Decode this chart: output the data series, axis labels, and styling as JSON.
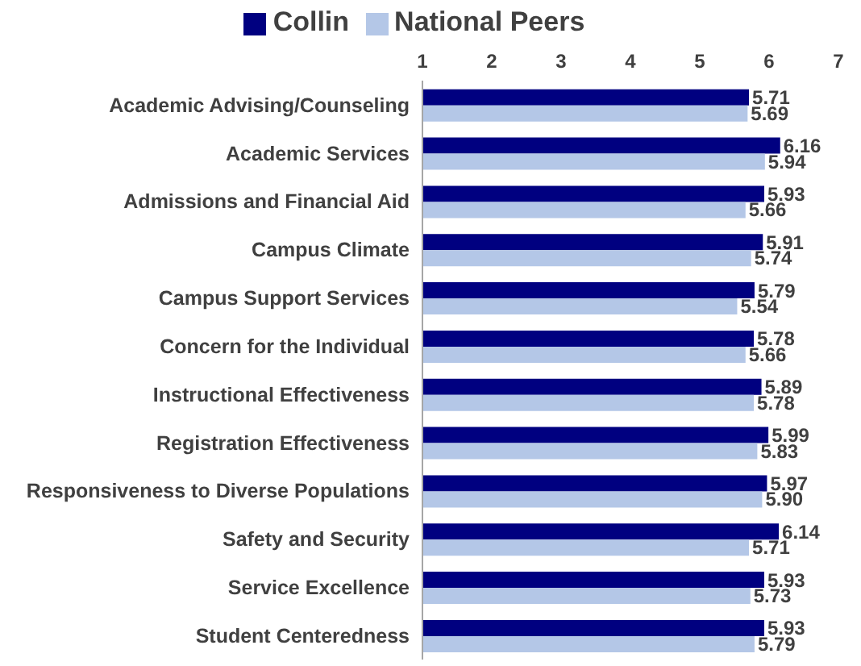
{
  "chart_data": {
    "type": "bar",
    "orientation": "horizontal",
    "categories": [
      "Academic Advising/Counseling",
      "Academic Services",
      "Admissions and Financial Aid",
      "Campus Climate",
      "Campus Support Services",
      "Concern for the Individual",
      "Instructional Effectiveness",
      "Registration Effectiveness",
      "Responsiveness to Diverse Populations",
      "Safety and Security",
      "Service Excellence",
      "Student Centeredness"
    ],
    "series": [
      {
        "name": "Collin",
        "color": "#000080",
        "values": [
          5.71,
          6.16,
          5.93,
          5.91,
          5.79,
          5.78,
          5.89,
          5.99,
          5.97,
          6.14,
          5.93,
          5.93
        ]
      },
      {
        "name": "National Peers",
        "color": "#b4c7e7",
        "values": [
          5.69,
          5.94,
          5.66,
          5.74,
          5.54,
          5.66,
          5.78,
          5.83,
          5.9,
          5.71,
          5.73,
          5.79
        ],
        "value_labels": [
          "5.69",
          "5.94",
          "5.66",
          "5.74",
          "5.54",
          "5.66",
          "5.78",
          "5.83",
          "5.90",
          "5.71",
          "5.73",
          "5.79"
        ]
      }
    ],
    "xlim": [
      1,
      7
    ],
    "xticks": [
      1,
      2,
      3,
      4,
      5,
      6,
      7
    ],
    "data_labels": true,
    "legend": "top",
    "grid": false
  }
}
